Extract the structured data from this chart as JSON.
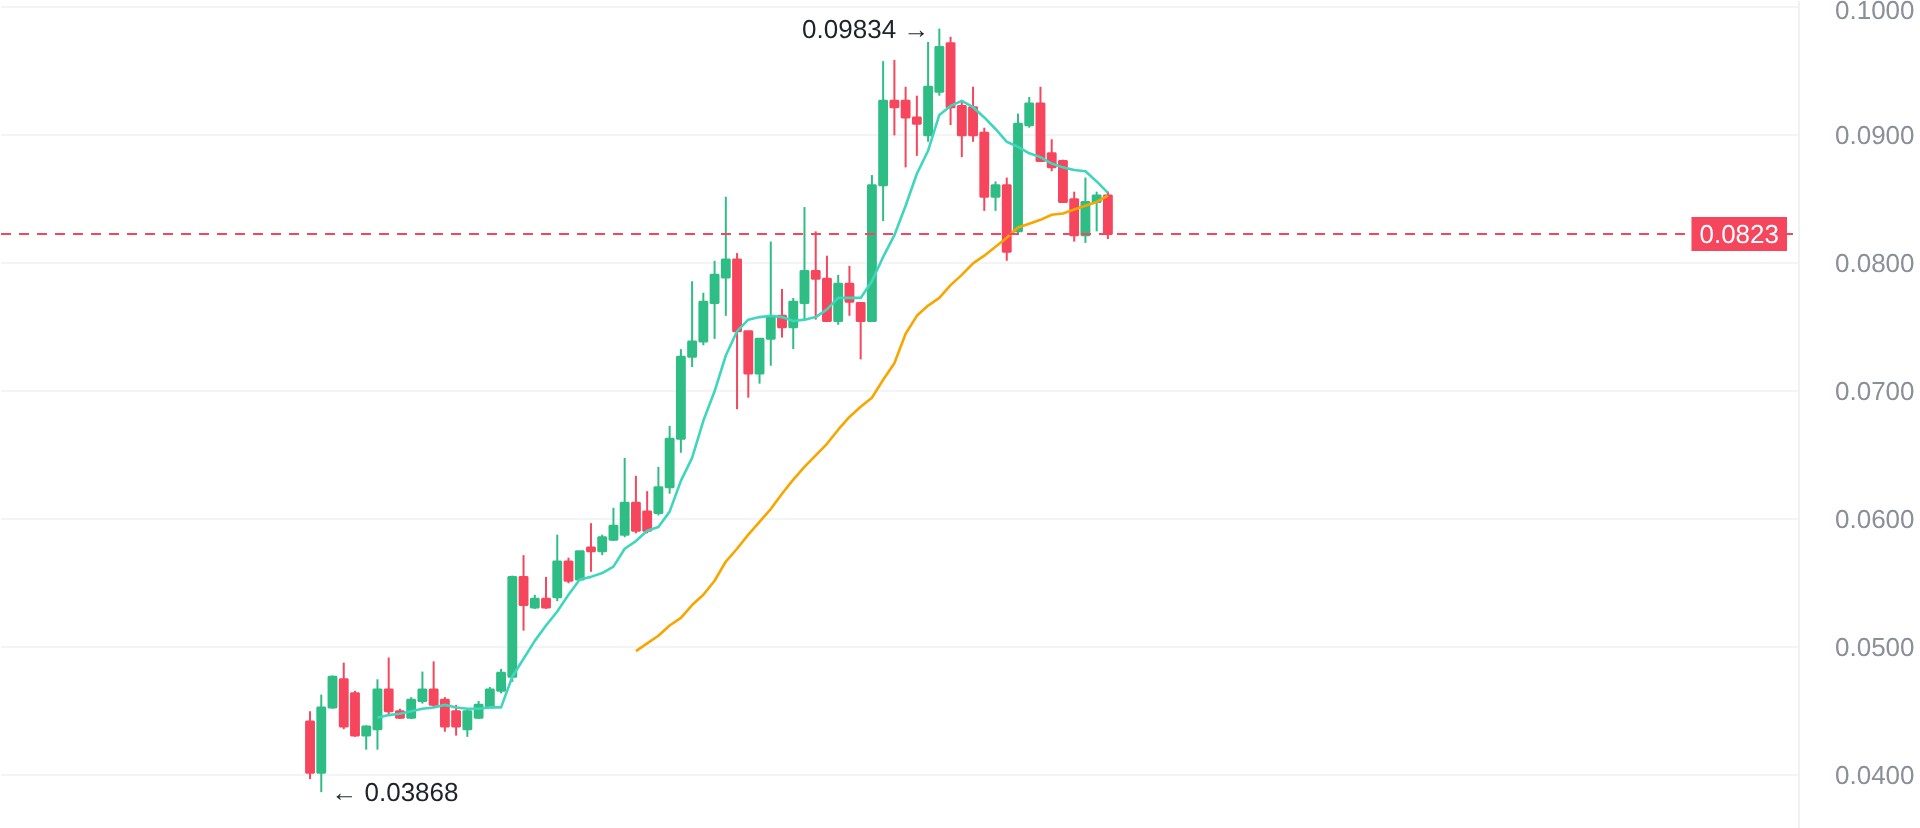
{
  "chart_data": {
    "type": "candlestick",
    "categories": [
      null,
      null,
      null,
      null,
      null,
      null,
      null,
      null,
      null,
      null,
      null,
      null,
      null,
      null,
      null,
      null,
      null,
      null,
      null,
      null,
      null,
      null,
      null,
      null,
      null,
      null,
      null,
      null,
      null,
      null,
      null,
      null,
      null,
      null,
      null,
      null,
      null,
      null,
      null,
      null,
      null,
      null,
      null,
      null,
      null,
      null,
      null,
      null,
      null,
      null,
      null,
      null,
      null,
      null,
      null,
      null,
      null,
      null,
      null,
      null,
      null,
      null,
      null,
      null,
      null,
      null,
      null,
      null,
      null,
      null,
      null,
      null,
      null,
      null,
      null,
      null,
      null,
      null,
      null,
      null,
      null,
      null,
      null,
      null,
      null,
      null,
      null,
      null,
      null,
      null,
      null,
      null,
      null,
      null,
      null,
      null,
      null,
      null,
      null,
      null,
      null,
      null,
      null,
      null,
      null,
      null,
      null,
      null,
      null,
      null,
      null,
      null,
      null,
      null,
      null,
      null,
      null,
      null,
      null,
      null,
      null,
      null,
      null,
      null,
      null,
      null,
      null,
      null,
      null,
      null,
      null,
      null,
      null,
      null,
      null,
      null,
      null,
      null,
      null,
      null,
      null,
      null,
      null,
      null,
      null,
      null,
      null,
      null,
      null,
      null,
      null,
      null,
      null,
      null,
      null,
      null,
      null,
      null,
      null,
      null
    ],
    "ohlc": [
      null,
      null,
      null,
      null,
      null,
      null,
      null,
      null,
      null,
      null,
      null,
      null,
      null,
      null,
      null,
      null,
      null,
      null,
      null,
      null,
      null,
      null,
      null,
      null,
      null,
      null,
      null,
      [
        0.0442,
        0.045,
        0.0397,
        0.0402
      ],
      [
        0.0402,
        0.0463,
        0.03868,
        0.0453
      ],
      [
        0.0453,
        0.0478,
        0.0452,
        0.0477
      ],
      [
        0.0475,
        0.0488,
        0.0436,
        0.0438
      ],
      [
        0.0464,
        0.0466,
        0.043,
        0.0431
      ],
      [
        0.0431,
        0.0439,
        0.042,
        0.0438
      ],
      [
        0.0436,
        0.0475,
        0.042,
        0.0467
      ],
      [
        0.0467,
        0.0492,
        0.0447,
        0.045
      ],
      [
        0.045,
        0.0452,
        0.0444,
        0.0445
      ],
      [
        0.0445,
        0.0461,
        0.0444,
        0.0459
      ],
      [
        0.0458,
        0.0481,
        0.0456,
        0.0467
      ],
      [
        0.0467,
        0.0489,
        0.0453,
        0.0455
      ],
      [
        0.0459,
        0.0461,
        0.0434,
        0.0438
      ],
      [
        0.045,
        0.0455,
        0.0431,
        0.0438
      ],
      [
        0.0436,
        0.0452,
        0.043,
        0.045
      ],
      [
        0.0445,
        0.0458,
        0.0444,
        0.0455
      ],
      [
        0.0453,
        0.0469,
        0.0453,
        0.0467
      ],
      [
        0.0466,
        0.0483,
        0.0464,
        0.048
      ],
      [
        0.0477,
        0.0556,
        0.0473,
        0.0555
      ],
      [
        0.0555,
        0.0572,
        0.0513,
        0.0533
      ],
      [
        0.0531,
        0.0541,
        0.053,
        0.0538
      ],
      [
        0.0538,
        0.0555,
        0.053,
        0.0531
      ],
      [
        0.0539,
        0.0588,
        0.0536,
        0.0567
      ],
      [
        0.0567,
        0.057,
        0.055,
        0.0552
      ],
      [
        0.0553,
        0.0575,
        0.0552,
        0.0575
      ],
      [
        0.0578,
        0.0597,
        0.0559,
        0.0575
      ],
      [
        0.0575,
        0.0588,
        0.0572,
        0.0586
      ],
      [
        0.0584,
        0.0609,
        0.0583,
        0.0595
      ],
      [
        0.0588,
        0.0648,
        0.0586,
        0.0613
      ],
      [
        0.0613,
        0.0634,
        0.0589,
        0.0591
      ],
      [
        0.0606,
        0.0622,
        0.0589,
        0.0591
      ],
      [
        0.0605,
        0.0641,
        0.0603,
        0.0625
      ],
      [
        0.0625,
        0.0673,
        0.062,
        0.0663
      ],
      [
        0.0663,
        0.0733,
        0.0652,
        0.0727
      ],
      [
        0.0727,
        0.0786,
        0.0719,
        0.0739
      ],
      [
        0.0739,
        0.0777,
        0.0736,
        0.077
      ],
      [
        0.0769,
        0.0802,
        0.0741,
        0.0791
      ],
      [
        0.0789,
        0.0852,
        0.0759,
        0.0803
      ],
      [
        0.0803,
        0.0808,
        0.0686,
        0.0747
      ],
      [
        0.0747,
        0.0747,
        0.0695,
        0.0714
      ],
      [
        0.0714,
        0.0741,
        0.0706,
        0.0741
      ],
      [
        0.0741,
        0.0817,
        0.072,
        0.0758
      ],
      [
        0.0759,
        0.078,
        0.0742,
        0.075
      ],
      [
        0.075,
        0.0773,
        0.0733,
        0.077
      ],
      [
        0.0769,
        0.0844,
        0.0755,
        0.0794
      ],
      [
        0.0794,
        0.0825,
        0.0756,
        0.0788
      ],
      [
        0.0788,
        0.0806,
        0.0755,
        0.0755
      ],
      [
        0.0755,
        0.0791,
        0.0752,
        0.0784
      ],
      [
        0.0784,
        0.0798,
        0.0759,
        0.077
      ],
      [
        0.0769,
        0.0769,
        0.0725,
        0.0755
      ],
      [
        0.0755,
        0.0869,
        0.0755,
        0.0861
      ],
      [
        0.0861,
        0.0958,
        0.0833,
        0.0927
      ],
      [
        0.0927,
        0.0959,
        0.09,
        0.0922
      ],
      [
        0.0927,
        0.0938,
        0.0875,
        0.0914
      ],
      [
        0.0914,
        0.0931,
        0.0884,
        0.0909
      ],
      [
        0.09,
        0.0973,
        0.0895,
        0.0938
      ],
      [
        0.0934,
        0.09834,
        0.0931,
        0.0969
      ],
      [
        0.0972,
        0.0977,
        0.0908,
        0.0922
      ],
      [
        0.0923,
        0.0927,
        0.0883,
        0.09
      ],
      [
        0.0922,
        0.0938,
        0.0895,
        0.09
      ],
      [
        0.0902,
        0.0906,
        0.0841,
        0.0852
      ],
      [
        0.0852,
        0.0864,
        0.0841,
        0.0861
      ],
      [
        0.0861,
        0.0867,
        0.0802,
        0.0809
      ],
      [
        0.0825,
        0.0917,
        0.0823,
        0.0909
      ],
      [
        0.0908,
        0.093,
        0.0906,
        0.0925
      ],
      [
        0.0925,
        0.0938,
        0.088,
        0.088
      ],
      [
        0.0886,
        0.0897,
        0.0872,
        0.0875
      ],
      [
        0.088,
        0.0881,
        0.0848,
        0.0848
      ],
      [
        0.085,
        0.0856,
        0.0817,
        0.0822
      ],
      [
        0.0822,
        0.0867,
        0.0816,
        0.0848
      ],
      [
        0.0848,
        0.0856,
        0.0825,
        0.0853
      ],
      [
        0.0853,
        0.0856,
        0.0819,
        0.0823
      ],
      null,
      null,
      null,
      null,
      null,
      null,
      null,
      null,
      null,
      null,
      null,
      null,
      null,
      null,
      null,
      null,
      null,
      null,
      null,
      null,
      null,
      null,
      null,
      null,
      null,
      null,
      null,
      null,
      null,
      null,
      null,
      null,
      null,
      null,
      null,
      null,
      null,
      null,
      null,
      null,
      null,
      null,
      null,
      null,
      null,
      null,
      null,
      null,
      null,
      null,
      null,
      null,
      null,
      null,
      null,
      null,
      null,
      null,
      null,
      null,
      null
    ],
    "colors": [
      null,
      null,
      null,
      null,
      null,
      null,
      null,
      null,
      null,
      null,
      null,
      null,
      null,
      null,
      null,
      null,
      null,
      null,
      null,
      null,
      null,
      null,
      null,
      null,
      null,
      null,
      null,
      "#f6465d",
      "#2ebd85",
      "#2ebd85",
      "#f6465d",
      "#f6465d",
      "#2ebd85",
      "#2ebd85",
      "#f6465d",
      "#f6465d",
      "#2ebd85",
      "#2ebd85",
      "#f6465d",
      "#f6465d",
      "#f6465d",
      "#2ebd85",
      "#2ebd85",
      "#2ebd85",
      "#2ebd85",
      "#2ebd85",
      "#f6465d",
      "#2ebd85",
      "#f6465d",
      "#2ebd85",
      "#f6465d",
      "#2ebd85",
      "#f6465d",
      "#2ebd85",
      "#2ebd85",
      "#2ebd85",
      "#f6465d",
      "#f6465d",
      "#2ebd85",
      "#2ebd85",
      "#2ebd85",
      "#2ebd85",
      "#2ebd85",
      "#2ebd85",
      "#2ebd85",
      "#f6465d",
      "#f6465d",
      "#2ebd85",
      "#2ebd85",
      "#f6465d",
      "#2ebd85",
      "#2ebd85",
      "#f6465d",
      "#f6465d",
      "#2ebd85",
      "#f6465d",
      "#f6465d",
      "#2ebd85",
      "#2ebd85",
      "#f6465d",
      "#f6465d",
      "#f6465d",
      "#2ebd85",
      "#2ebd85",
      "#f6465d",
      "#f6465d",
      "#f6465d",
      "#f6465d",
      "#2ebd85",
      "#f6465d",
      "#2ebd85",
      "#2ebd85",
      "#f6465d",
      "#f6465d",
      "#f6465d",
      "#f6465d",
      "#2ebd85",
      "#2ebd85",
      "#f6465d",
      null,
      null,
      null,
      null,
      null,
      null,
      null,
      null,
      null,
      null,
      null,
      null,
      null,
      null,
      null,
      null,
      null,
      null,
      null,
      null,
      null,
      null,
      null,
      null,
      null,
      null,
      null,
      null,
      null,
      null,
      null,
      null,
      null,
      null,
      null,
      null,
      null,
      null,
      null,
      null,
      null,
      null,
      null,
      null,
      null,
      null,
      null,
      null,
      null,
      null,
      null,
      null,
      null,
      null,
      null,
      null,
      null,
      null,
      null,
      null,
      null
    ],
    "series": [
      {
        "type": "line",
        "color": "#3fd6bd",
        "values": [
          null,
          null,
          null,
          null,
          null,
          null,
          null,
          null,
          null,
          null,
          null,
          null,
          null,
          null,
          null,
          null,
          null,
          null,
          null,
          null,
          null,
          null,
          null,
          null,
          null,
          null,
          null,
          null,
          null,
          null,
          null,
          null,
          null,
          0.0445,
          0.0447,
          0.0448,
          0.045,
          0.0452,
          0.0453,
          0.0455,
          0.0453,
          0.0452,
          0.0452,
          0.0453,
          0.0453,
          0.0477,
          0.0491,
          0.0505,
          0.0517,
          0.0528,
          0.0541,
          0.0553,
          0.0555,
          0.0558,
          0.0563,
          0.0577,
          0.0583,
          0.0591,
          0.0594,
          0.0606,
          0.063,
          0.0648,
          0.0677,
          0.07,
          0.0728,
          0.0747,
          0.0756,
          0.0758,
          0.0759,
          0.0758,
          0.0755,
          0.0756,
          0.0758,
          0.0764,
          0.0773,
          0.0773,
          0.0773,
          0.0786,
          0.0805,
          0.0822,
          0.0845,
          0.087,
          0.0888,
          0.0916,
          0.0923,
          0.0927,
          0.0922,
          0.0914,
          0.0905,
          0.0895,
          0.0891,
          0.0886,
          0.0883,
          0.0878,
          0.0875,
          0.0873,
          0.0872,
          0.0864,
          0.0855,
          null,
          null,
          null,
          null,
          null,
          null,
          null,
          null,
          null,
          null,
          null,
          null,
          null,
          null,
          null,
          null,
          null,
          null,
          null,
          null,
          null,
          null,
          null,
          null,
          null,
          null,
          null,
          null,
          null,
          null,
          null,
          null,
          null,
          null,
          null,
          null,
          null,
          null,
          null,
          null,
          null,
          null,
          null,
          null,
          null,
          null,
          null,
          null,
          null,
          null,
          null,
          null,
          null,
          null,
          null,
          null,
          null,
          null,
          null,
          null,
          null
        ]
      },
      {
        "type": "line",
        "color": "#f7a600",
        "values": [
          null,
          null,
          null,
          null,
          null,
          null,
          null,
          null,
          null,
          null,
          null,
          null,
          null,
          null,
          null,
          null,
          null,
          null,
          null,
          null,
          null,
          null,
          null,
          null,
          null,
          null,
          null,
          null,
          null,
          null,
          null,
          null,
          null,
          null,
          null,
          null,
          null,
          null,
          null,
          null,
          null,
          null,
          null,
          null,
          null,
          null,
          null,
          null,
          null,
          null,
          null,
          null,
          null,
          null,
          null,
          null,
          0.0497,
          0.0503,
          0.0509,
          0.0517,
          0.0523,
          0.0533,
          0.0541,
          0.0552,
          0.0567,
          0.0577,
          0.0588,
          0.0598,
          0.0608,
          0.062,
          0.0631,
          0.0641,
          0.065,
          0.0659,
          0.067,
          0.068,
          0.0688,
          0.0695,
          0.0709,
          0.0722,
          0.0745,
          0.0759,
          0.0767,
          0.0773,
          0.0783,
          0.0791,
          0.08,
          0.0806,
          0.0813,
          0.082,
          0.0828,
          0.0831,
          0.0834,
          0.0838,
          0.0839,
          0.0842,
          0.0845,
          0.0848,
          0.0853,
          null,
          null,
          null,
          null,
          null,
          null,
          null,
          null,
          null,
          null,
          null,
          null,
          null,
          null,
          null,
          null,
          null,
          null,
          null,
          null,
          null,
          null,
          null,
          null,
          null,
          null,
          null,
          null,
          null,
          null,
          null,
          null,
          null,
          null,
          null,
          null,
          null,
          null,
          null,
          null,
          null,
          null,
          null,
          null,
          null,
          null,
          null,
          null,
          null,
          null,
          null,
          null,
          null,
          null,
          null,
          null,
          null,
          null,
          null,
          null,
          null
        ]
      }
    ],
    "ylim": [
      0.0358,
      0.1005
    ],
    "yticks": [
      {
        "value": 0.04,
        "label": "0.0400"
      },
      {
        "value": 0.05,
        "label": "0.0500"
      },
      {
        "value": 0.06,
        "label": "0.0600"
      },
      {
        "value": 0.07,
        "label": "0.0700"
      },
      {
        "value": 0.08,
        "label": "0.0800"
      },
      {
        "value": 0.09,
        "label": "0.0900"
      },
      {
        "value": 0.1,
        "label": "0.1000"
      }
    ],
    "ref_lines": [
      {
        "axis": "y",
        "value": 0.0823,
        "label": "0.0823",
        "color": "#f6465d",
        "line_style": "dashed"
      }
    ],
    "annotations": [
      "← 0.03868",
      "0.09834 →"
    ],
    "grid": "y",
    "tick_labels": "y"
  }
}
